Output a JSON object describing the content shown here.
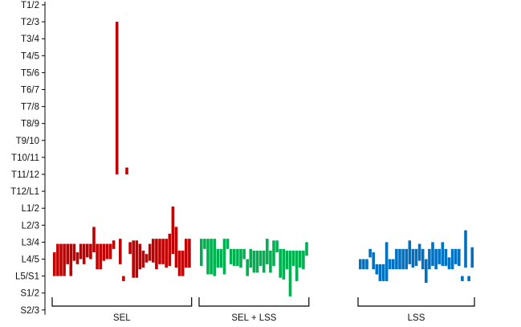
{
  "chart_data": {
    "type": "bar",
    "subtype": "floating-range",
    "title": "",
    "xlabel": "",
    "ylabel": "",
    "y_axis_order": "top-to-bottom",
    "levels": [
      "T1/2",
      "T2/3",
      "T3/4",
      "T4/5",
      "T5/6",
      "T6/7",
      "T7/8",
      "T8/9",
      "T9/10",
      "T10/11",
      "T11/12",
      "T12/L1",
      "L1/2",
      "L2/3",
      "L3/4",
      "L4/5",
      "L5/S1",
      "S1/2",
      "S2/3"
    ],
    "grid": false,
    "legend": "none",
    "groups": [
      {
        "name": "SEL",
        "color": "#c00000",
        "ranges": [
          [
            14.6,
            16.0
          ],
          [
            14.1,
            16.0
          ],
          [
            14.1,
            16.0
          ],
          [
            14.1,
            16.0
          ],
          [
            14.1,
            15.3
          ],
          [
            14.1,
            16.0
          ],
          [
            14.1,
            15.1
          ],
          [
            14.6,
            15.3
          ],
          [
            14.1,
            15.0
          ],
          [
            14.1,
            15.3
          ],
          [
            14.1,
            14.9
          ],
          [
            14.1,
            15.0
          ],
          [
            13.1,
            14.6
          ],
          [
            14.1,
            15.6
          ],
          [
            14.1,
            15.6
          ],
          [
            14.1,
            15.1
          ],
          [
            14.1,
            15.0
          ],
          [
            14.1,
            15.0
          ],
          [
            13.9,
            14.4
          ],
          [
            1.0,
            10.0
          ],
          [
            13.8,
            15.3
          ],
          [
            16.0,
            16.3
          ],
          [
            9.6,
            10.0
          ],
          [
            14.0,
            14.7
          ],
          [
            13.9,
            16.1
          ],
          [
            13.9,
            16.1
          ],
          [
            14.1,
            15.6
          ],
          [
            14.5,
            15.5
          ],
          [
            14.7,
            15.2
          ],
          [
            14.1,
            15.1
          ],
          [
            13.8,
            15.2
          ],
          [
            13.8,
            15.6
          ],
          [
            13.8,
            15.3
          ],
          [
            13.8,
            15.3
          ],
          [
            13.8,
            15.5
          ],
          [
            13.5,
            15.4
          ],
          [
            11.9,
            14.7
          ],
          [
            13.1,
            15.5
          ],
          [
            14.5,
            16.0
          ],
          [
            14.5,
            16.0
          ],
          [
            13.8,
            15.5
          ],
          [
            13.8,
            15.5
          ]
        ]
      },
      {
        "name": "SEL + LSS",
        "color": "#00b050",
        "ranges": [
          [
            13.8,
            15.4
          ],
          [
            13.8,
            14.4
          ],
          [
            13.8,
            15.9
          ],
          [
            13.8,
            15.9
          ],
          [
            13.8,
            16.0
          ],
          [
            14.4,
            15.5
          ],
          [
            14.4,
            15.5
          ],
          [
            13.8,
            15.9
          ],
          [
            13.8,
            14.4
          ],
          [
            14.4,
            15.3
          ],
          [
            14.4,
            15.4
          ],
          [
            14.4,
            15.4
          ],
          [
            14.4,
            15.5
          ],
          [
            14.4,
            15.0
          ],
          [
            15.0,
            16.0
          ],
          [
            14.4,
            15.5
          ],
          [
            14.5,
            15.8
          ],
          [
            14.5,
            15.8
          ],
          [
            14.5,
            15.4
          ],
          [
            14.5,
            15.8
          ],
          [
            13.8,
            15.3
          ],
          [
            14.5,
            15.8
          ],
          [
            13.9,
            15.4
          ],
          [
            13.9,
            14.6
          ],
          [
            14.4,
            16.1
          ],
          [
            14.4,
            16.2
          ],
          [
            14.5,
            15.6
          ],
          [
            14.5,
            17.2
          ],
          [
            14.5,
            15.4
          ],
          [
            14.5,
            16.3
          ],
          [
            14.5,
            15.5
          ],
          [
            14.5,
            15.6
          ],
          [
            14.0,
            14.8
          ]
        ]
      },
      {
        "name": "LSS",
        "color": "#0070c0",
        "ranges": [
          [
            15.0,
            15.6
          ],
          [
            15.0,
            15.6
          ],
          [
            15.0,
            15.6
          ],
          [
            14.4,
            14.9
          ],
          [
            14.6,
            15.6
          ],
          [
            15.3,
            15.9
          ],
          [
            15.3,
            16.3
          ],
          [
            15.3,
            16.3
          ],
          [
            14.0,
            16.3
          ],
          [
            15.0,
            15.6
          ],
          [
            15.0,
            15.6
          ],
          [
            14.4,
            15.6
          ],
          [
            14.4,
            15.6
          ],
          [
            14.4,
            15.6
          ],
          [
            14.4,
            15.6
          ],
          [
            13.9,
            15.3
          ],
          [
            14.4,
            15.5
          ],
          [
            14.4,
            15.4
          ],
          [
            14.1,
            15.1
          ],
          [
            14.4,
            15.6
          ],
          [
            15.0,
            16.4
          ],
          [
            14.4,
            15.6
          ],
          [
            14.0,
            15.4
          ],
          [
            14.4,
            15.6
          ],
          [
            14.4,
            15.3
          ],
          [
            14.0,
            15.4
          ],
          [
            14.4,
            15.4
          ],
          [
            14.9,
            15.6
          ],
          [
            14.4,
            15.6
          ],
          [
            14.4,
            15.3
          ],
          [
            14.4,
            15.4
          ],
          [
            16.0,
            16.3
          ],
          [
            13.3,
            15.5
          ],
          [
            16.0,
            16.3
          ],
          [
            14.3,
            15.5
          ]
        ]
      }
    ]
  }
}
